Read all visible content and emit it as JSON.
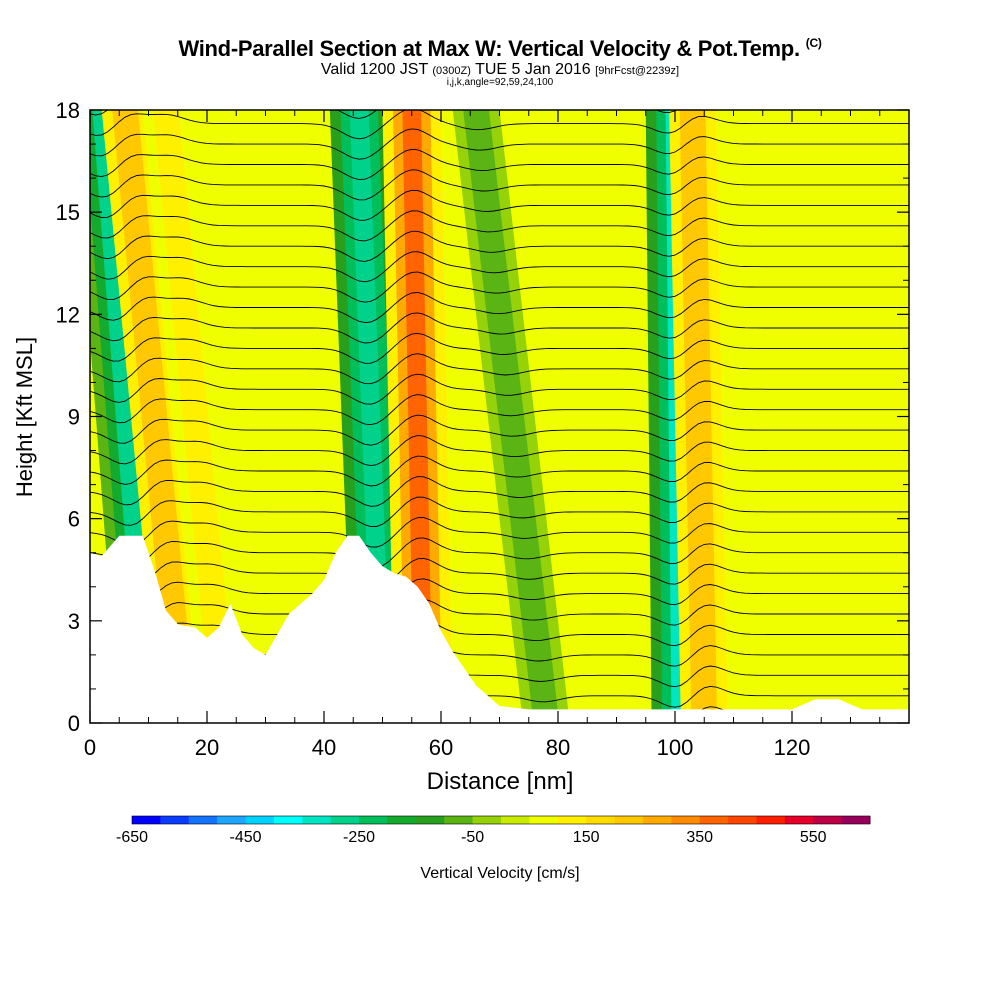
{
  "header": {
    "title": "Wind-Parallel Section at Max W: Vertical Velocity & Pot.Temp.",
    "copyright": "(C)",
    "valid_prefix": "Valid 1200 JST",
    "valid_utc": "(0300Z)",
    "valid_date": "TUE 5 Jan 2016",
    "forecast": "[9hrFcst@2239z]",
    "params": "i,j,k,angle=92,59,24,100"
  },
  "chart_data": {
    "type": "heatmap",
    "title": "Wind-Parallel Section at Max W: Vertical Velocity & Pot.Temp.",
    "xlabel": "Distance [nm]",
    "ylabel": "Height [Kft MSL]",
    "xlim": [
      0,
      140
    ],
    "ylim": [
      0,
      18
    ],
    "xticks": [
      0,
      20,
      40,
      60,
      80,
      100,
      120
    ],
    "yticks": [
      0,
      3,
      6,
      9,
      12,
      15,
      18
    ],
    "grid": false,
    "terrain_profile": {
      "x": [
        0,
        2,
        5,
        9,
        11,
        13,
        15,
        18,
        20,
        22,
        24,
        26,
        28,
        30,
        32,
        34,
        36,
        38,
        40,
        42,
        44,
        46,
        48,
        50,
        52,
        54,
        56,
        58,
        60,
        62,
        64,
        66,
        68,
        70,
        75,
        85,
        100,
        120,
        124,
        128,
        132,
        140
      ],
      "y": [
        5.0,
        4.9,
        5.5,
        5.5,
        4.5,
        3.3,
        2.9,
        2.8,
        2.5,
        2.8,
        3.5,
        2.6,
        2.2,
        2.0,
        2.6,
        3.2,
        3.5,
        3.8,
        4.2,
        5.0,
        5.5,
        5.5,
        5.0,
        4.6,
        4.4,
        4.3,
        4.0,
        3.5,
        2.7,
        2.1,
        1.6,
        1.1,
        0.8,
        0.5,
        0.4,
        0.4,
        0.4,
        0.4,
        0.7,
        0.7,
        0.4,
        0.4
      ]
    },
    "updraft_bands": [
      {
        "x_bottom": 10,
        "x_top": 2,
        "w": -280
      },
      {
        "x_bottom": 16,
        "x_top": 6,
        "w": 200
      },
      {
        "x_bottom": 23,
        "x_top": 13,
        "w": 140
      },
      {
        "x_bottom": 50,
        "x_top": 46,
        "w": -300
      },
      {
        "x_bottom": 57,
        "x_top": 55,
        "w": 380
      },
      {
        "x_bottom": 78,
        "x_top": 66,
        "w": -100
      },
      {
        "x_bottom": 101,
        "x_top": 100,
        "w": -320
      },
      {
        "x_bottom": 105,
        "x_top": 103,
        "w": 220
      }
    ],
    "colorbar": {
      "label": "Vertical Velocity [cm/s]",
      "tick_labels": [
        "-650",
        "-450",
        "-250",
        "-50",
        "150",
        "350",
        "550"
      ],
      "tick_values": [
        -650,
        -450,
        -250,
        -50,
        150,
        350,
        550
      ],
      "range": [
        -650,
        650
      ],
      "step": 50,
      "colors": [
        "#0000ff",
        "#0a3cff",
        "#1473ff",
        "#1ea5ff",
        "#00d2ff",
        "#00ffff",
        "#00e6c3",
        "#00d28c",
        "#00be5a",
        "#14aa2d",
        "#28a01e",
        "#5ab414",
        "#96d20a",
        "#c8eb00",
        "#f0ff00",
        "#fff000",
        "#ffdc00",
        "#ffc800",
        "#ffaa00",
        "#ff8c00",
        "#ff6400",
        "#ff4600",
        "#ff1e00",
        "#e60028",
        "#be0046",
        "#96005a",
        "#780078",
        "#5a0078"
      ]
    },
    "contour_label": "Pot.Temp."
  }
}
